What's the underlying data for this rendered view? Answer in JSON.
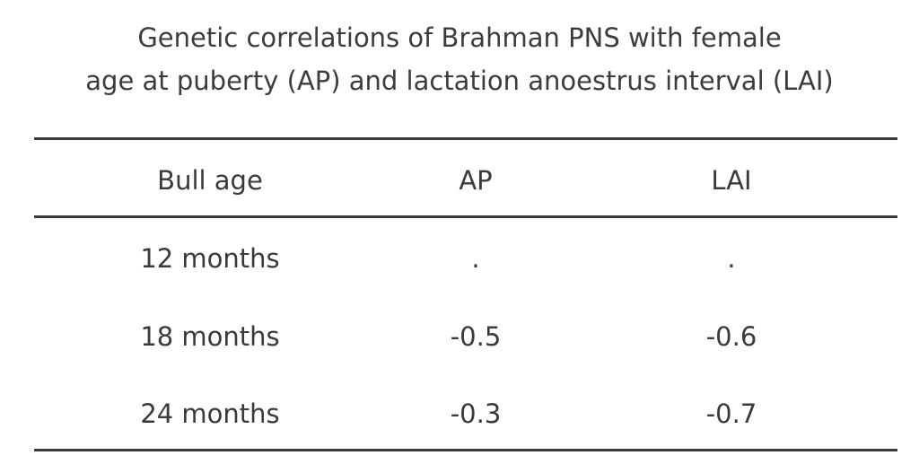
{
  "title": {
    "line1": "Genetic correlations of Brahman PNS with female",
    "line2": "age at puberty (AP) and lactation anoestrus interval (LAI)"
  },
  "table": {
    "headers": [
      "Bull age",
      "AP",
      "LAI"
    ],
    "rows": [
      [
        "12 months",
        ".",
        "."
      ],
      [
        "18 months",
        "-0.5",
        "-0.6"
      ],
      [
        "24 months",
        "-0.3",
        "-0.7"
      ]
    ]
  },
  "colors": {
    "text": "#3a3a3a",
    "rules": "#3a3a3a",
    "background": "#ffffff"
  }
}
